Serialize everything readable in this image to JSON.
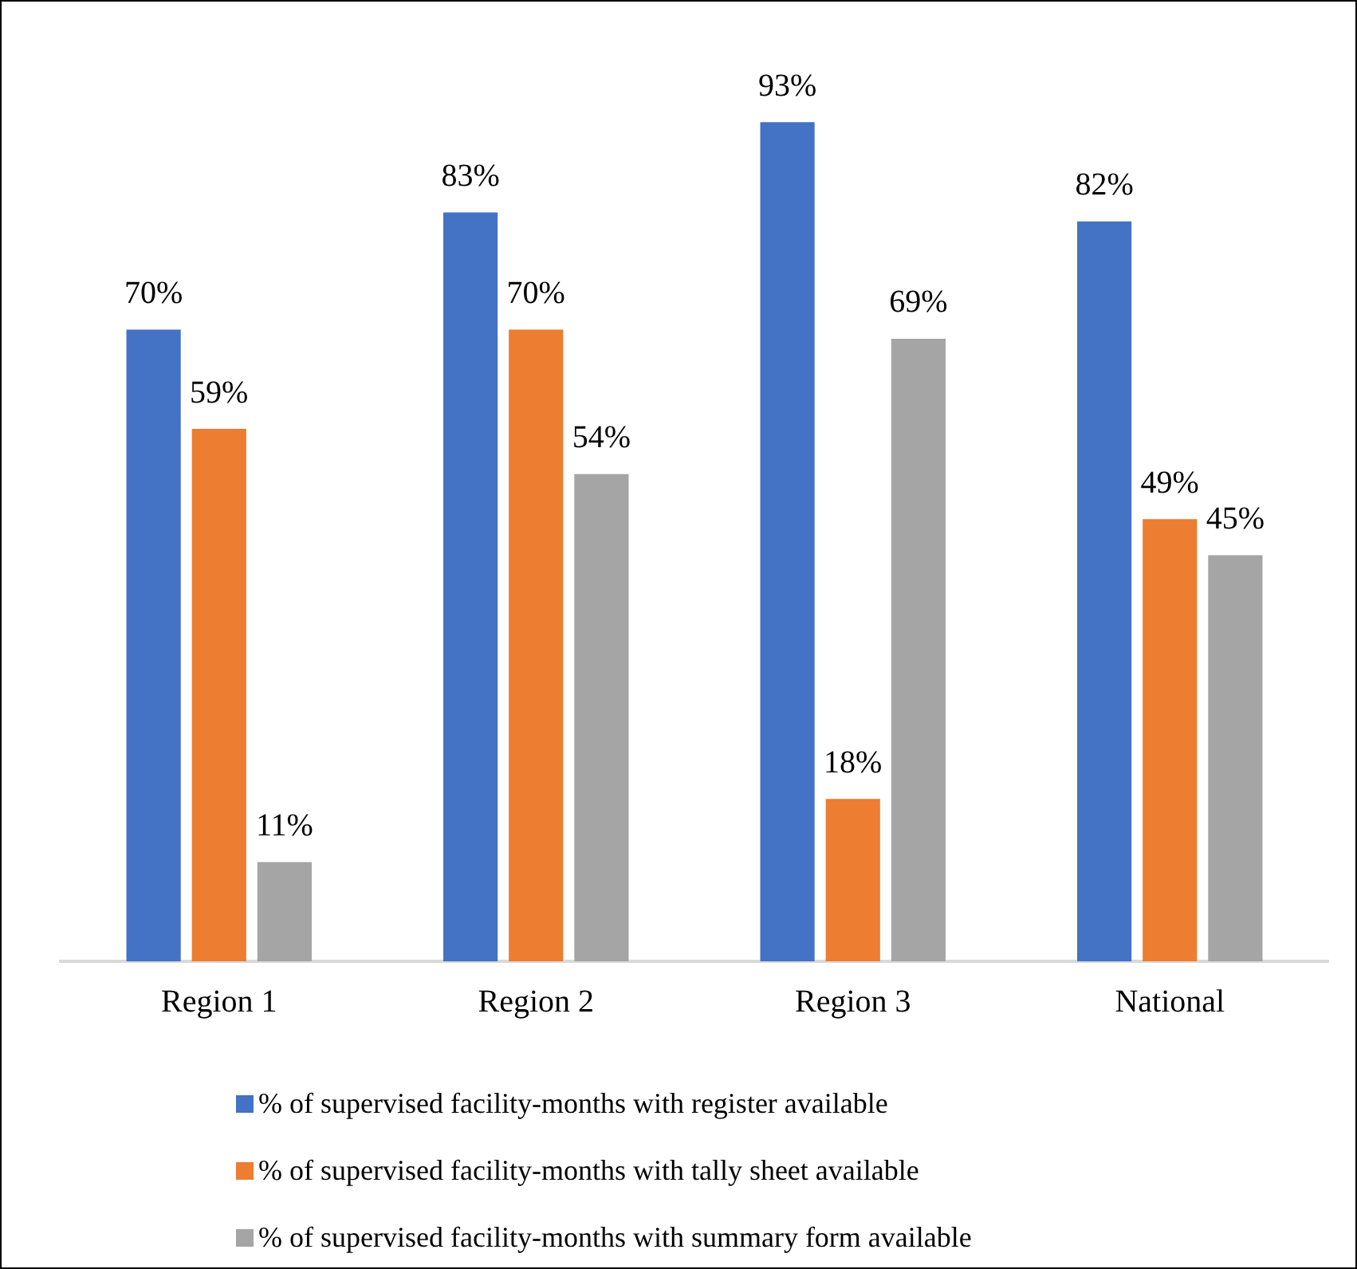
{
  "chart_data": {
    "type": "bar",
    "categories": [
      "Region 1",
      "Region 2",
      "Region 3",
      "National"
    ],
    "series": [
      {
        "name": "% of supervised facility-months with register available",
        "color": "#4472c4",
        "values": [
          70,
          83,
          93,
          82
        ],
        "value_labels": [
          "70%",
          "83%",
          "93%",
          "82%"
        ]
      },
      {
        "name": "% of supervised facility-months with tally sheet available",
        "color": "#ed7d31",
        "values": [
          59,
          70,
          18,
          49
        ],
        "value_labels": [
          "59%",
          "70%",
          "18%",
          "49%"
        ]
      },
      {
        "name": "% of supervised facility-months with summary form available",
        "color": "#a5a5a5",
        "values": [
          11,
          54,
          69,
          45
        ],
        "value_labels": [
          "11%",
          "54%",
          "69%",
          "45%"
        ]
      }
    ],
    "legend": "bottom"
  }
}
